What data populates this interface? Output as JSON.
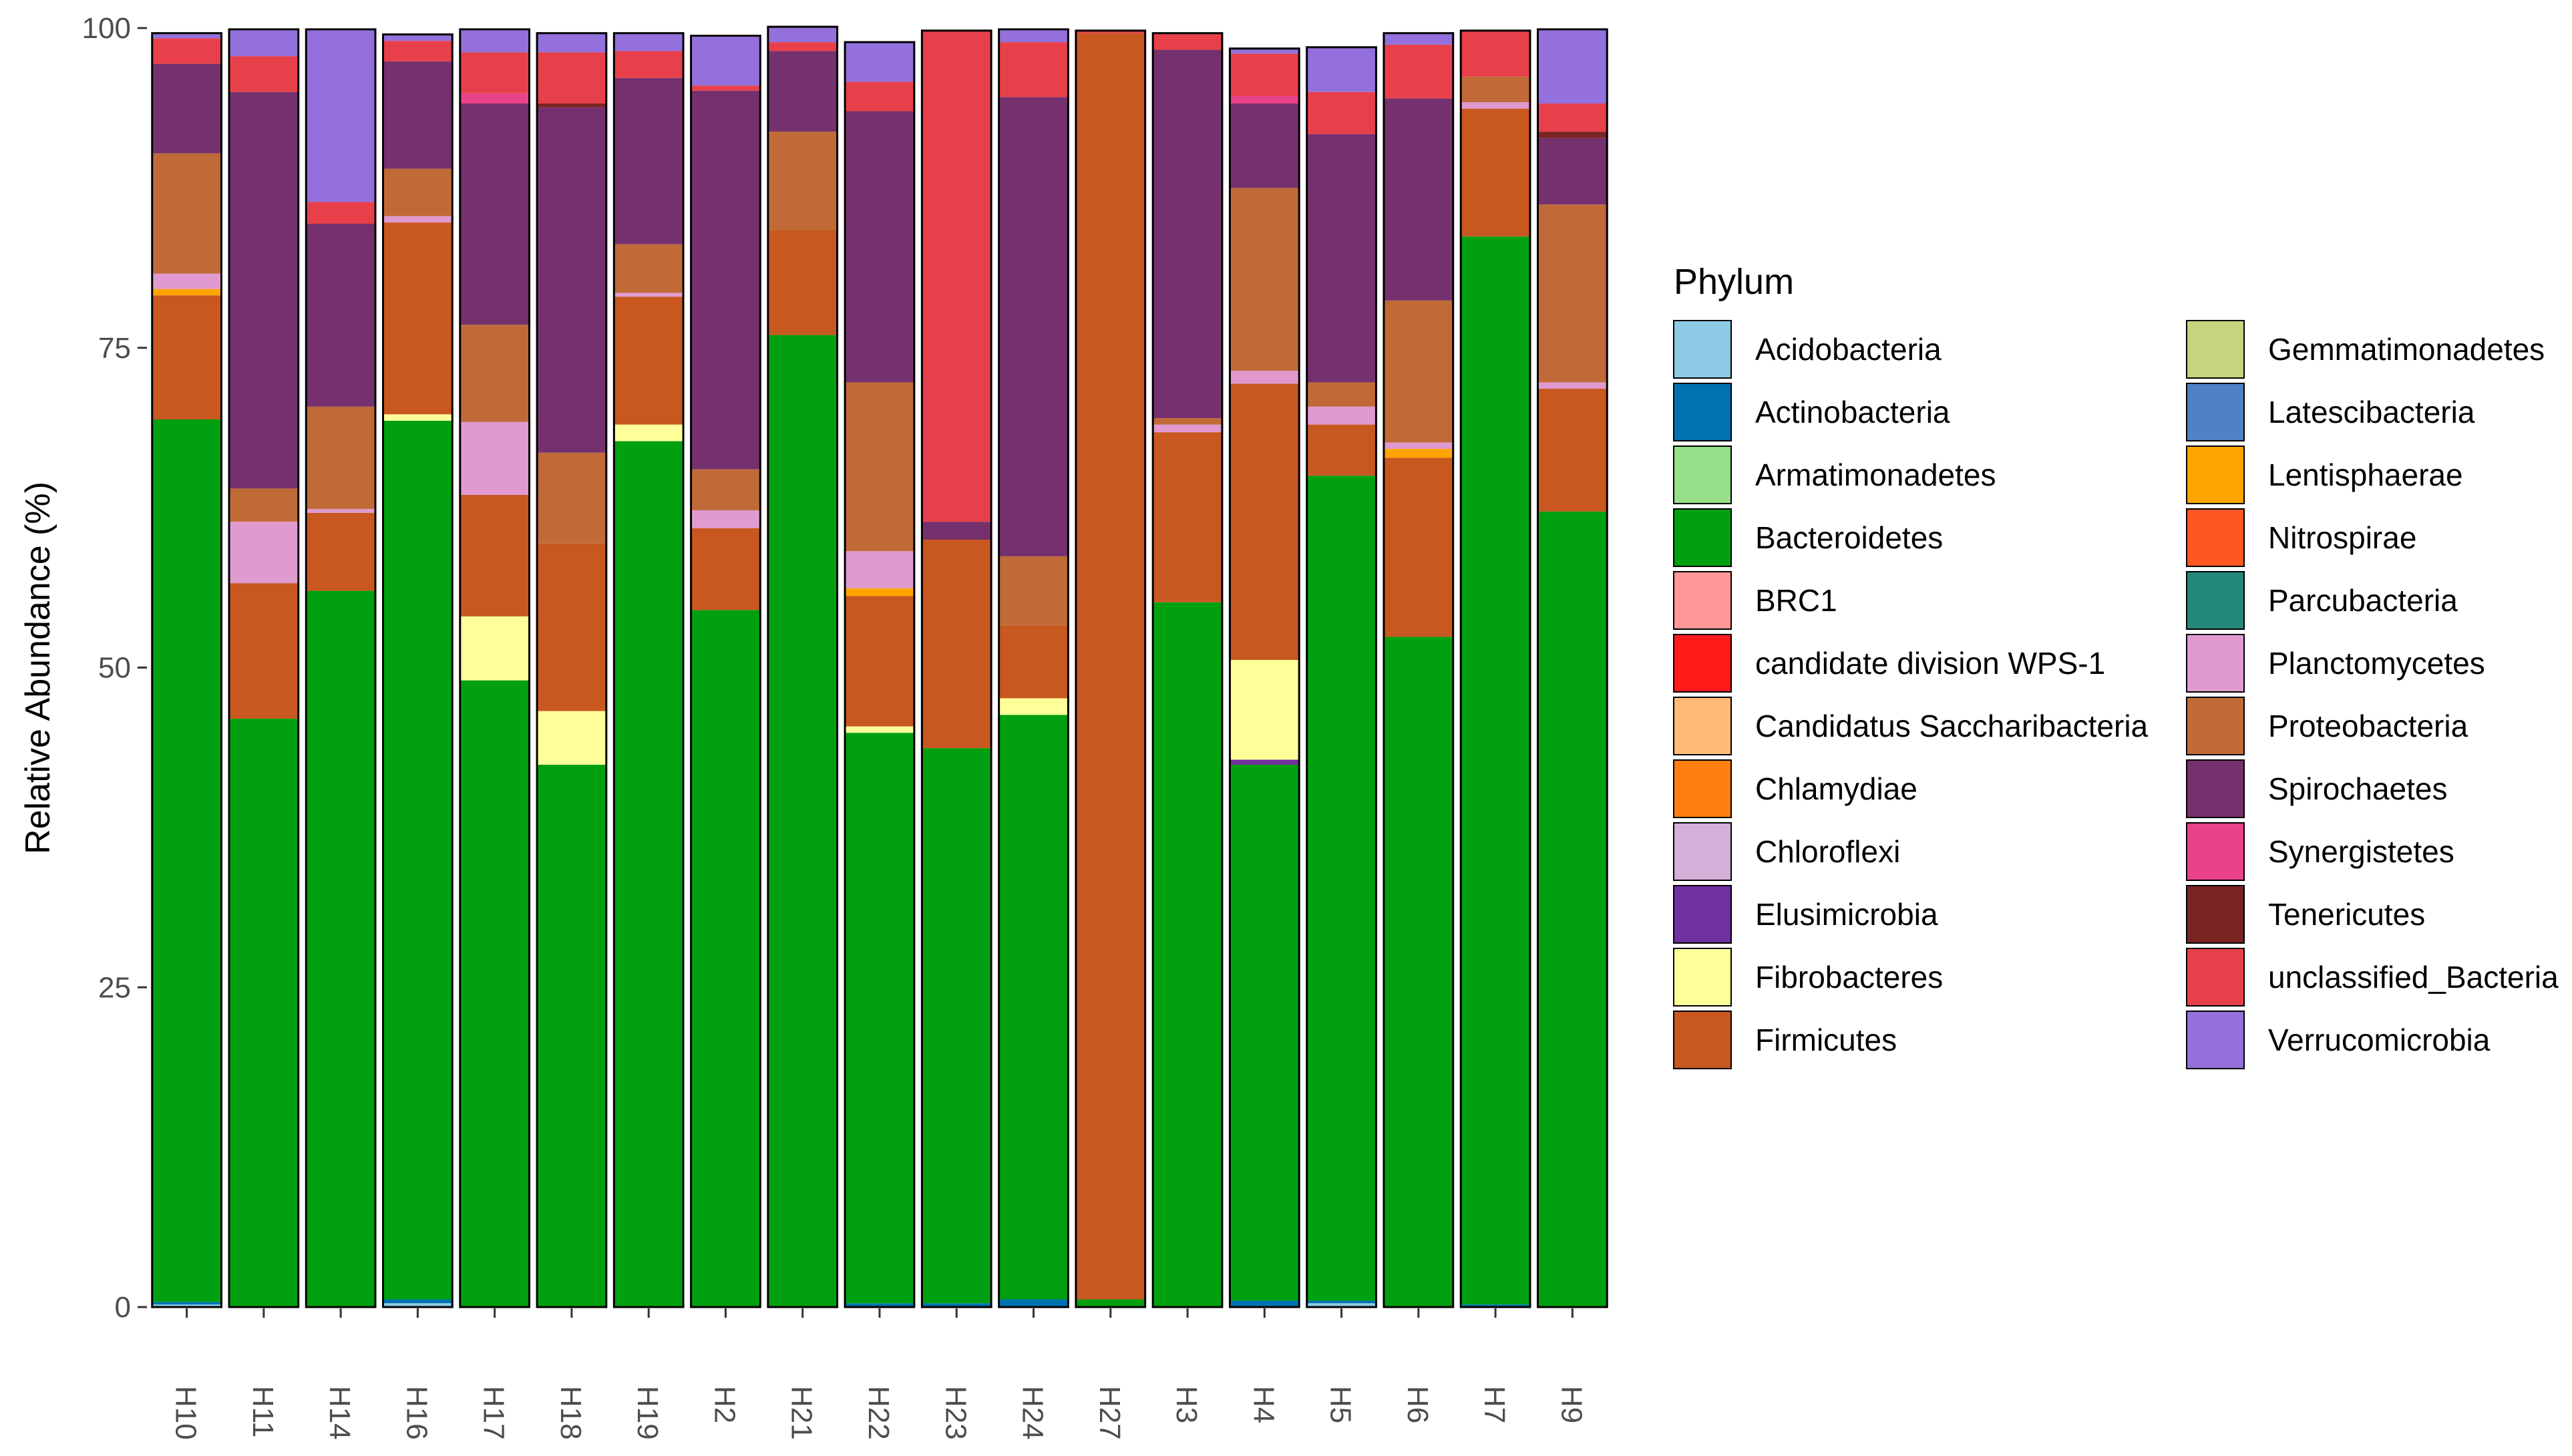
{
  "chart_data": {
    "type": "bar",
    "stacked": true,
    "title": "",
    "xlabel": "",
    "ylabel": "Relative Abundance (%)",
    "ylim": [
      0,
      100
    ],
    "yticks": [
      0,
      25,
      50,
      75,
      100
    ],
    "legend_title": "Phylum",
    "legend_position": "right",
    "categories": [
      "H10",
      "H11",
      "H14",
      "H16",
      "H17",
      "H18",
      "H19",
      "H2",
      "H21",
      "H22",
      "H23",
      "H24",
      "H27",
      "H3",
      "H4",
      "H5",
      "H6",
      "H7",
      "H9"
    ],
    "series": [
      {
        "name": "Acidobacteria",
        "color": "#8ecae6",
        "values": [
          0.2,
          0,
          0,
          0.3,
          0,
          0,
          0,
          0,
          0,
          0,
          0,
          0,
          0,
          0,
          0,
          0.3,
          0,
          0,
          0
        ]
      },
      {
        "name": "Actinobacteria",
        "color": "#0072b2",
        "values": [
          0.2,
          0,
          0,
          0.3,
          0,
          0,
          0,
          0,
          0,
          0.3,
          0.3,
          0.6,
          0,
          0,
          0.5,
          0.2,
          0,
          0.2,
          0
        ]
      },
      {
        "name": "Armatimonadetes",
        "color": "#98df8a",
        "values": [
          0,
          0,
          0,
          0,
          0,
          0,
          0,
          0,
          0,
          0,
          0,
          0,
          0,
          0,
          0,
          0,
          0,
          0,
          0
        ]
      },
      {
        "name": "Bacteroidetes",
        "color": "#00a010",
        "values": [
          69,
          46,
          56,
          68.7,
          49,
          42.4,
          67.7,
          54.5,
          76,
          44.6,
          43.4,
          45.7,
          0.6,
          55.1,
          41.9,
          64.5,
          52.4,
          83.5,
          62.2
        ]
      },
      {
        "name": "BRC1",
        "color": "#ff9896",
        "values": [
          0,
          0,
          0,
          0,
          0,
          0,
          0,
          0,
          0,
          0,
          0,
          0,
          0,
          0,
          0,
          0,
          0,
          0,
          0
        ]
      },
      {
        "name": "candidate division WPS-1",
        "color": "#ff1a1a",
        "values": [
          0,
          0,
          0,
          0,
          0,
          0,
          0,
          0,
          0,
          0,
          0,
          0,
          0,
          0,
          0,
          0,
          0,
          0,
          0
        ]
      },
      {
        "name": "Candidatus Saccharibacteria",
        "color": "#ffbb78",
        "values": [
          0,
          0,
          0,
          0,
          0,
          0,
          0,
          0,
          0,
          0,
          0,
          0,
          0,
          0,
          0,
          0,
          0,
          0,
          0
        ]
      },
      {
        "name": "Chlamydiae",
        "color": "#ff7f0e",
        "values": [
          0,
          0,
          0,
          0,
          0,
          0,
          0,
          0,
          0,
          0,
          0,
          0,
          0,
          0,
          0,
          0,
          0,
          0,
          0
        ]
      },
      {
        "name": "Chloroflexi",
        "color": "#d4b0d8",
        "values": [
          0,
          0,
          0,
          0,
          0,
          0,
          0,
          0,
          0,
          0,
          0,
          0,
          0,
          0,
          0,
          0,
          0,
          0,
          0
        ]
      },
      {
        "name": "Elusimicrobia",
        "color": "#7030a0",
        "values": [
          0,
          0,
          0,
          0,
          0,
          0,
          0,
          0,
          0,
          0,
          0,
          0,
          0,
          0,
          0.4,
          0,
          0,
          0,
          0
        ]
      },
      {
        "name": "Fibrobacteres",
        "color": "#ffff99",
        "values": [
          0,
          0,
          0,
          0.5,
          5,
          4.2,
          1.3,
          0,
          0,
          0.5,
          0,
          1.3,
          0,
          0,
          7.8,
          0,
          0,
          0,
          0
        ]
      },
      {
        "name": "Firmicutes",
        "color": "#c85820",
        "values": [
          9.7,
          10.6,
          6.1,
          15,
          9.5,
          13.1,
          10,
          6.4,
          8.2,
          10.2,
          16.3,
          5.7,
          99,
          13.3,
          21.6,
          4,
          14,
          10,
          9.6
        ]
      },
      {
        "name": "Gemmatimonadetes",
        "color": "#c7d47e",
        "values": [
          0,
          0,
          0,
          0,
          0,
          0,
          0,
          0,
          0,
          0,
          0,
          0,
          0,
          0,
          0,
          0,
          0,
          0,
          0
        ]
      },
      {
        "name": "Latescibacteria",
        "color": "#4f81c7",
        "values": [
          0,
          0,
          0,
          0,
          0,
          0,
          0,
          0,
          0,
          0,
          0,
          0,
          0,
          0,
          0,
          0,
          0,
          0,
          0
        ]
      },
      {
        "name": "Lentisphaerae",
        "color": "#ffa500",
        "values": [
          0.5,
          0,
          0,
          0,
          0,
          0,
          0,
          0,
          0,
          0.6,
          0,
          0,
          0,
          0,
          0,
          0,
          0.7,
          0,
          0
        ]
      },
      {
        "name": "Nitrospirae",
        "color": "#ff5722",
        "values": [
          0,
          0,
          0,
          0,
          0,
          0,
          0,
          0,
          0,
          0,
          0,
          0,
          0,
          0,
          0,
          0,
          0,
          0,
          0
        ]
      },
      {
        "name": "Parcubacteria",
        "color": "#23897a",
        "values": [
          0,
          0,
          0,
          0,
          0,
          0,
          0,
          0,
          0,
          0,
          0,
          0,
          0,
          0,
          0,
          0,
          0,
          0,
          0
        ]
      },
      {
        "name": "Planctomycetes",
        "color": "#e09ad0",
        "values": [
          1.2,
          4.8,
          0.3,
          0.5,
          5.7,
          0,
          0.3,
          1.4,
          0,
          2.9,
          0,
          0,
          0,
          0.6,
          1,
          1.4,
          0.5,
          0.5,
          0.5
        ]
      },
      {
        "name": "Proteobacteria",
        "color": "#c06a38",
        "values": [
          9.4,
          2.6,
          8,
          3.7,
          7.6,
          7.1,
          3.8,
          3.2,
          7.7,
          13.2,
          0,
          5.4,
          0,
          0.5,
          14.3,
          1.9,
          11.1,
          2,
          13.9
        ]
      },
      {
        "name": "Spirochaetes",
        "color": "#75316e",
        "values": [
          7,
          31,
          14.3,
          8.4,
          17.3,
          27,
          13,
          29.6,
          6.3,
          21.2,
          1.4,
          35.9,
          0,
          28.8,
          6.6,
          19.4,
          15.8,
          0,
          5.2
        ]
      },
      {
        "name": "Synergistetes",
        "color": "#e84388",
        "values": [
          0,
          0,
          0,
          0,
          0.8,
          0,
          0,
          0,
          0,
          0,
          0,
          0,
          0,
          0,
          0.6,
          0,
          0,
          0,
          0
        ]
      },
      {
        "name": "Tenericutes",
        "color": "#7a2424",
        "values": [
          0,
          0,
          0,
          0,
          0,
          0.3,
          0,
          0,
          0,
          0,
          0,
          0,
          0,
          0,
          0,
          0,
          0,
          0,
          0.5
        ]
      },
      {
        "name": "unclassified_Bacteria",
        "color": "#e8404a",
        "values": [
          2,
          2.8,
          1.7,
          1.6,
          3.2,
          4,
          2.1,
          0.4,
          0.7,
          2.3,
          38.4,
          4.3,
          0.2,
          1.3,
          3.3,
          3.3,
          4.2,
          3.6,
          2.2
        ]
      },
      {
        "name": "Verrucomicrobia",
        "color": "#9370db",
        "values": [
          0.4,
          2.1,
          13.5,
          0.5,
          1.8,
          1.5,
          1.4,
          3.9,
          1.2,
          3.1,
          0,
          1,
          0,
          0,
          0.4,
          3.5,
          0.9,
          0,
          5.8
        ]
      }
    ]
  }
}
